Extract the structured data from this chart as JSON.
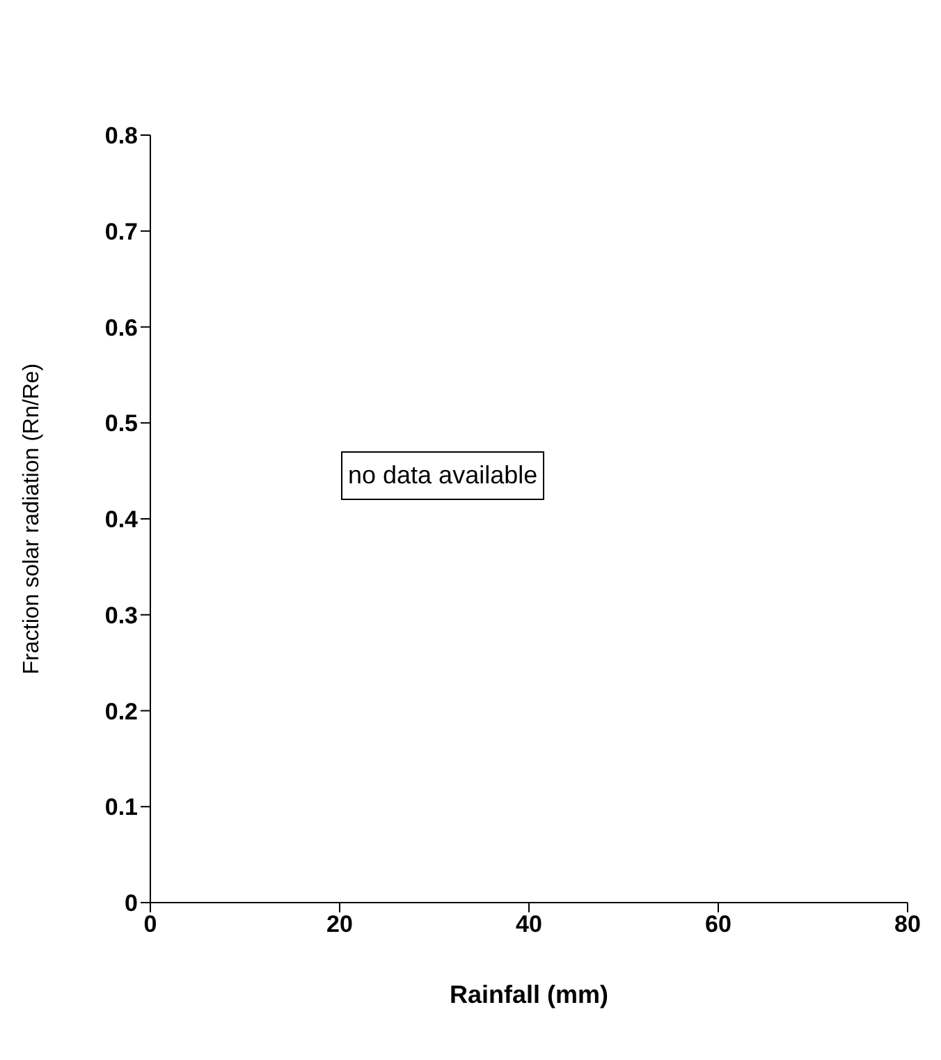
{
  "chart_data": {
    "type": "scatter",
    "xlabel": "Rainfall (mm)",
    "ylabel": "Fraction solar radiation (Rn/Re)",
    "xlim": [
      0,
      80
    ],
    "xticks": [
      0,
      20,
      40,
      60,
      80
    ],
    "ylim": [
      0,
      0.8
    ],
    "yticks": [
      0,
      0.1,
      0.2,
      0.3,
      0.4,
      0.5,
      0.6,
      0.7,
      0.8
    ],
    "annotations": [
      "no data available"
    ]
  }
}
